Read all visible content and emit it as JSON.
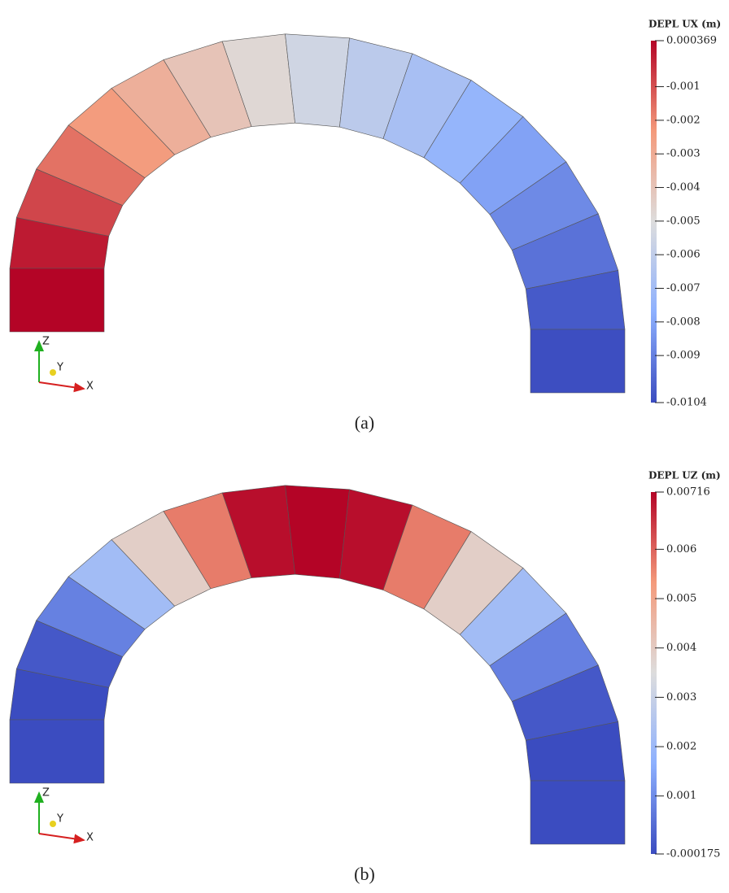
{
  "panels": [
    {
      "caption": "(a)",
      "colorbar": {
        "title": "DEPL UX (m)",
        "range": [
          -0.0104,
          0.000369
        ],
        "ticks": [
          -0.001,
          -0.002,
          -0.003,
          -0.004,
          -0.005,
          -0.006,
          -0.007,
          -0.008,
          -0.009
        ]
      },
      "axes": {
        "z": "Z",
        "y": "Y",
        "x": "X"
      }
    },
    {
      "caption": "(b)",
      "colorbar": {
        "title": "DEPL UZ (m)",
        "range": [
          -0.000175,
          0.00716
        ],
        "ticks": [
          0.006,
          0.005,
          0.004,
          0.003,
          0.002,
          0.001
        ]
      },
      "axes": {
        "z": "Z",
        "y": "Y",
        "x": "X"
      }
    }
  ]
}
